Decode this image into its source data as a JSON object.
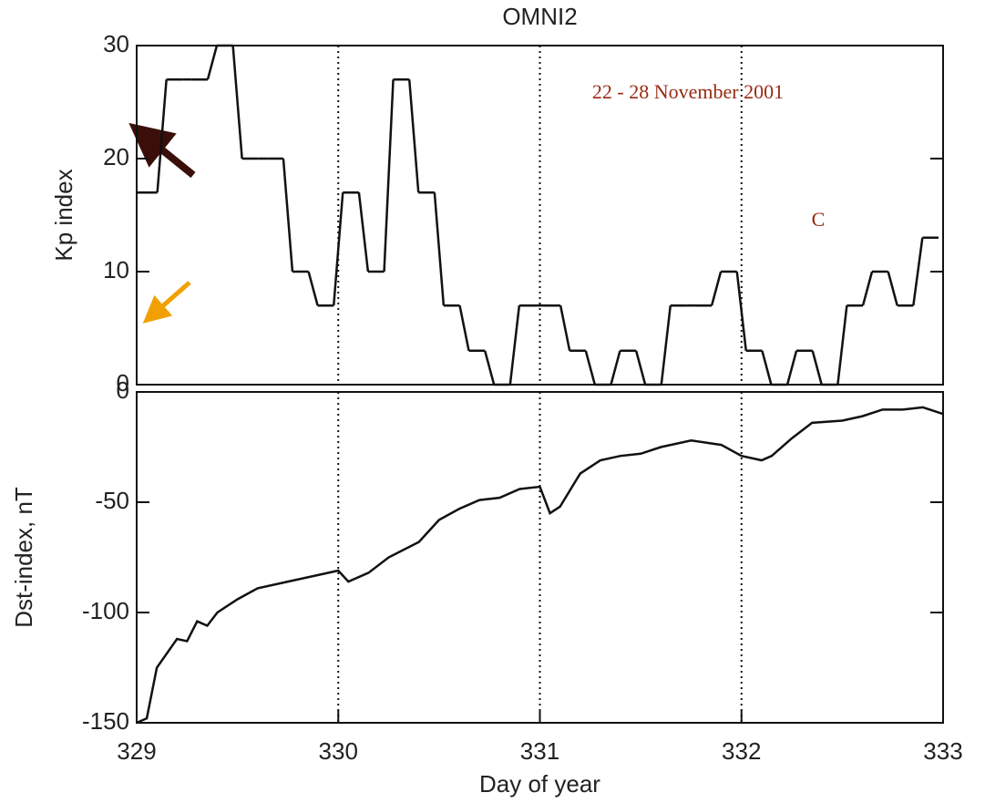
{
  "chart_data": [
    {
      "type": "step",
      "title": "OMNI2",
      "ylabel": "Kp index",
      "color": "#111111",
      "x": [
        329.0,
        329.125,
        329.25,
        329.375,
        329.5,
        329.625,
        329.75,
        329.875,
        330.0,
        330.125,
        330.25,
        330.375,
        330.5,
        330.625,
        330.75,
        330.875,
        331.0,
        331.125,
        331.25,
        331.375,
        331.5,
        331.625,
        331.75,
        331.875,
        332.0,
        332.125,
        332.25,
        332.375,
        332.5,
        332.625,
        332.75,
        332.875
      ],
      "values": [
        17,
        27,
        27,
        30,
        20,
        20,
        10,
        7,
        17,
        10,
        27,
        17,
        7,
        3,
        0,
        7,
        7,
        3,
        0,
        3,
        0,
        7,
        7,
        10,
        3,
        0,
        3,
        0,
        7,
        10,
        7,
        13
      ],
      "xlim": [
        329,
        333
      ],
      "ylim": [
        0,
        30
      ],
      "yticks": [
        0,
        10,
        20,
        30
      ],
      "annotations": [
        "22 - 28 November 2001",
        "C"
      ]
    },
    {
      "type": "line",
      "ylabel": "Dst-index, nT",
      "xlabel": "Day of year",
      "color": "#111111",
      "x": [
        329.0,
        329.05,
        329.1,
        329.2,
        329.25,
        329.3,
        329.35,
        329.4,
        329.5,
        329.6,
        329.75,
        329.9,
        330.0,
        330.05,
        330.15,
        330.25,
        330.4,
        330.5,
        330.6,
        330.7,
        330.8,
        330.9,
        331.0,
        331.05,
        331.1,
        331.2,
        331.3,
        331.4,
        331.5,
        331.6,
        331.75,
        331.9,
        332.0,
        332.1,
        332.15,
        332.25,
        332.35,
        332.5,
        332.6,
        332.7,
        332.8,
        332.9,
        333.0
      ],
      "values": [
        -150,
        -148,
        -125,
        -112,
        -113,
        -104,
        -106,
        -100,
        -94,
        -89,
        -86,
        -83,
        -81,
        -86,
        -82,
        -75,
        -68,
        -58,
        -53,
        -49,
        -48,
        -44,
        -43,
        -55,
        -52,
        -37,
        -31,
        -29,
        -28,
        -25,
        -22,
        -24,
        -29,
        -31,
        -29,
        -21,
        -14,
        -13,
        -11,
        -8,
        -8,
        -7,
        -10
      ],
      "xlim": [
        329,
        333
      ],
      "ylim": [
        -150,
        0
      ],
      "yticks": [
        -150,
        -100,
        -50,
        0
      ],
      "xticks": [
        329,
        330,
        331,
        332,
        333
      ],
      "xgrid": true
    }
  ]
}
